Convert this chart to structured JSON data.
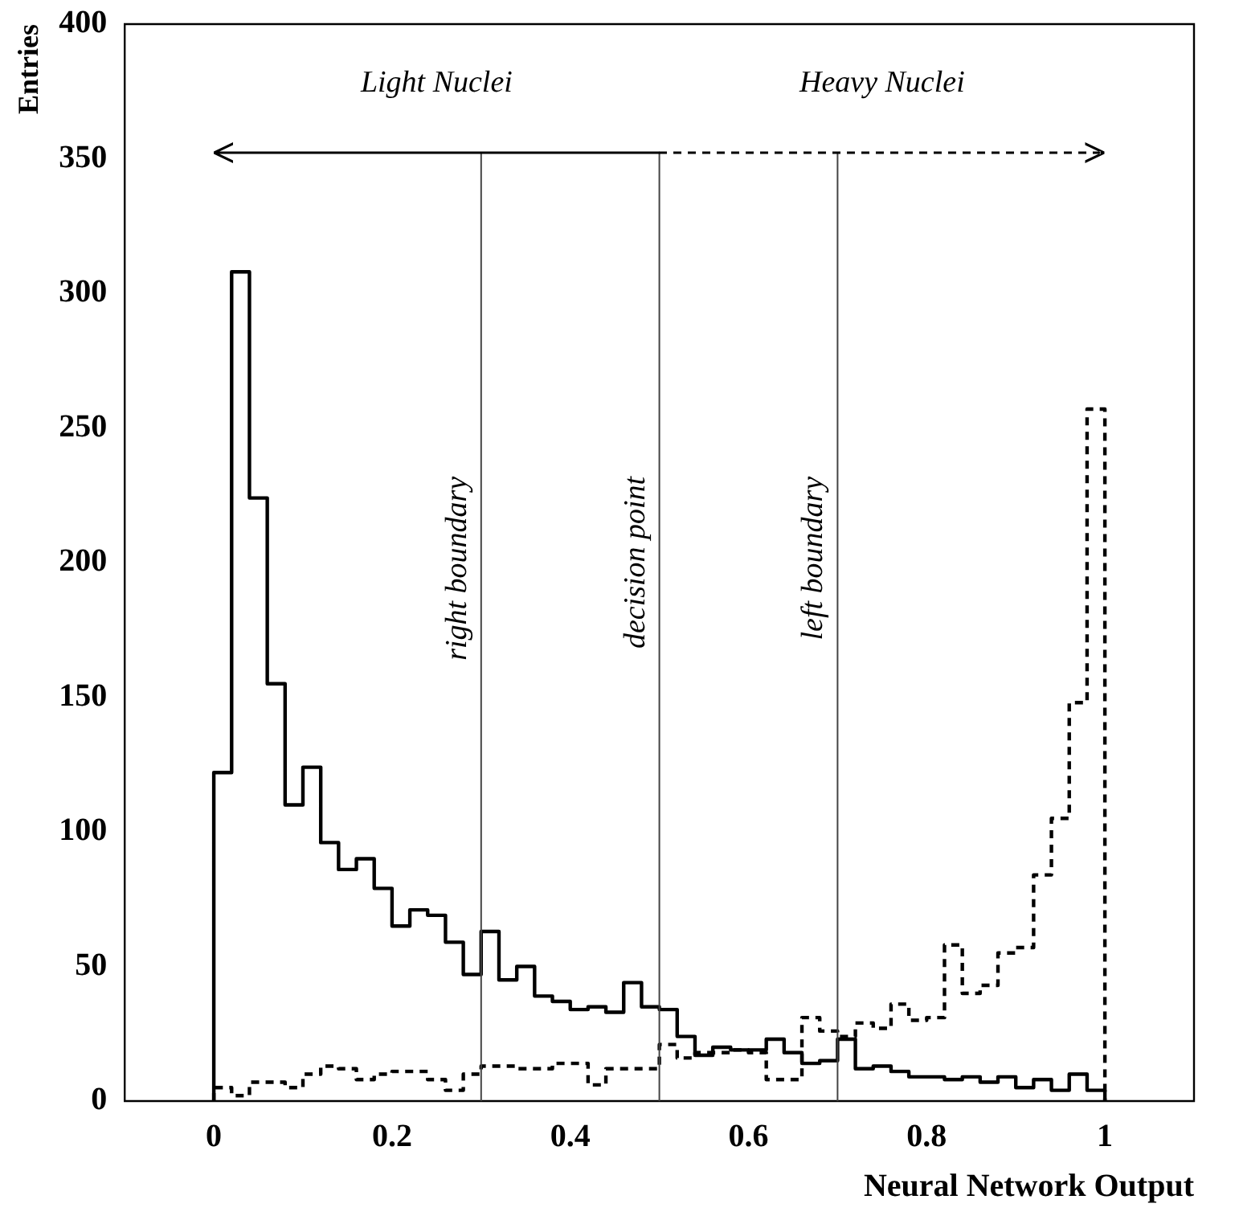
{
  "chart_data": {
    "type": "histogram",
    "xlabel": "Neural Network Output",
    "ylabel": "Entries",
    "bins": [
      0,
      0.02,
      0.04,
      0.06,
      0.08,
      0.1,
      0.12,
      0.14,
      0.16,
      0.18,
      0.2,
      0.22,
      0.24,
      0.26,
      0.28,
      0.3,
      0.32,
      0.34,
      0.36,
      0.38,
      0.4,
      0.42,
      0.44,
      0.46,
      0.48,
      0.5,
      0.52,
      0.54,
      0.56,
      0.58,
      0.6,
      0.62,
      0.64,
      0.66,
      0.68,
      0.7,
      0.72,
      0.74,
      0.76,
      0.78,
      0.8,
      0.82,
      0.84,
      0.86,
      0.88,
      0.9,
      0.92,
      0.94,
      0.96,
      0.98,
      1.0
    ],
    "series": [
      {
        "color": "#000000",
        "line_style": "solid",
        "values": [
          122,
          308,
          224,
          155,
          110,
          124,
          96,
          86,
          90,
          79,
          65,
          71,
          69,
          59,
          47,
          63,
          45,
          50,
          39,
          37,
          34,
          35,
          33,
          44,
          35,
          34,
          24,
          17,
          20,
          19,
          19,
          23,
          18,
          14,
          15,
          23,
          12,
          13,
          11,
          9,
          9,
          8,
          9,
          7,
          9,
          5,
          8,
          4,
          10,
          4
        ]
      },
      {
        "color": "#000000",
        "line_style": "dashed",
        "values": [
          5,
          2,
          7,
          7,
          5,
          10,
          13,
          12,
          8,
          10,
          11,
          11,
          8,
          4,
          10,
          13,
          13,
          12,
          12,
          14,
          14,
          6,
          12,
          12,
          12,
          21,
          16,
          18,
          18,
          19,
          18,
          8,
          8,
          31,
          26,
          24,
          29,
          27,
          36,
          30,
          31,
          58,
          40,
          43,
          55,
          57,
          84,
          105,
          148,
          257
        ]
      }
    ],
    "xlim": [
      -0.1,
      1.1
    ],
    "xticks": [
      0,
      0.2,
      0.4,
      0.6,
      0.8,
      1
    ],
    "ylim": [
      0,
      400
    ],
    "yticks": [
      0,
      50,
      100,
      150,
      200,
      250,
      300,
      350,
      400
    ],
    "ref_lines": [
      {
        "axis": "x",
        "value": 0.3,
        "label": "right boundary"
      },
      {
        "axis": "x",
        "value": 0.5,
        "label": "decision point"
      },
      {
        "axis": "x",
        "value": 0.7,
        "label": "left boundary"
      }
    ],
    "annotations": [
      "Light Nuclei",
      "Heavy Nuclei"
    ],
    "grid": false,
    "legend": false,
    "marker": "none"
  }
}
